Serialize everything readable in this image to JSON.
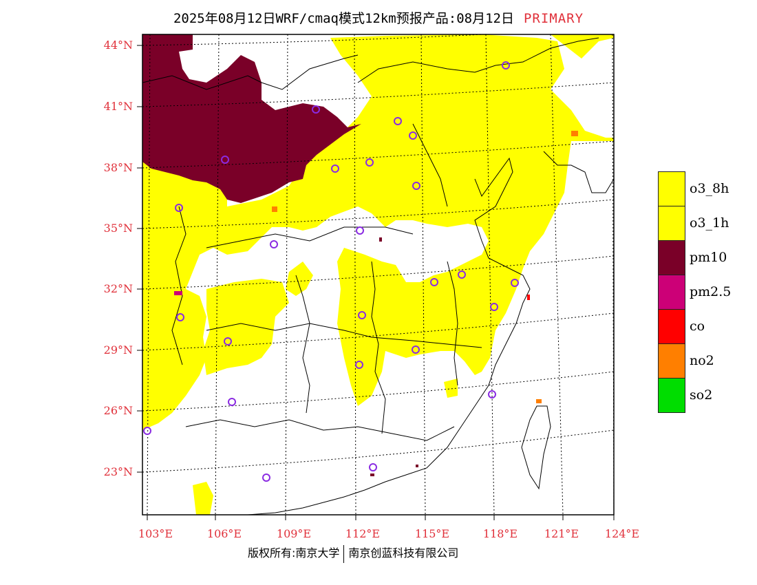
{
  "title": {
    "text": "2025年08月12日WRF/cmaq模式12km预报产品:08月12日",
    "mode": "PRIMARY"
  },
  "map": {
    "lat_labels": [
      "44°N",
      "41°N",
      "38°N",
      "35°N",
      "32°N",
      "29°N",
      "26°N",
      "23°N"
    ],
    "lon_labels": [
      "103°E",
      "106°E",
      "109°E",
      "112°E",
      "115°E",
      "118°E",
      "121°E",
      "124°E"
    ],
    "label_color": "#e0303a",
    "stations": 28
  },
  "legend": [
    {
      "name": "o3_8h",
      "color": "#ffff00"
    },
    {
      "name": "o3_1h",
      "color": "#ffff00"
    },
    {
      "name": "pm10",
      "color": "#7a0028"
    },
    {
      "name": "pm2.5",
      "color": "#cc0077"
    },
    {
      "name": "co",
      "color": "#ff0000"
    },
    {
      "name": "no2",
      "color": "#ff7f00"
    },
    {
      "name": "so2",
      "color": "#00dd00"
    }
  ],
  "footer": {
    "left": "版权所有:南京大学",
    "right": "南京创蓝科技有限公司"
  }
}
